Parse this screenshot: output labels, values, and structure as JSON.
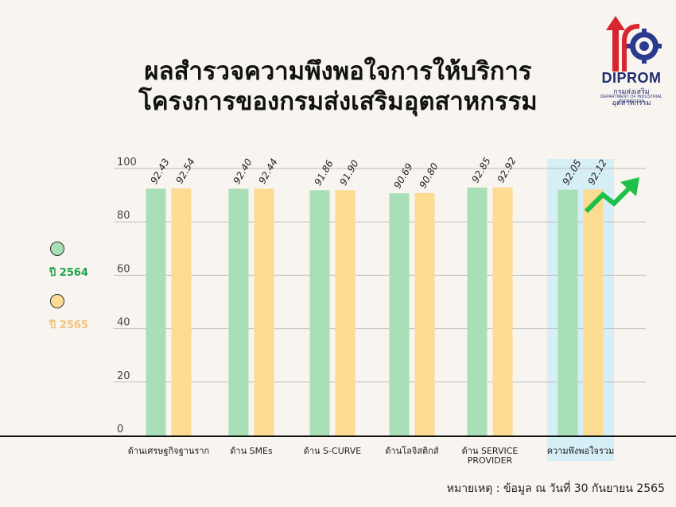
{
  "title_line1": "ผลสำรวจความพึงพอใจการให้บริการ",
  "title_line2": "โครงการของกรมส่งเสริมอุตสาหกรรม",
  "logo": {
    "name": "DIPROM",
    "sub_th": "กรมส่งเสริมอุตสาหกรรม",
    "sub_en": "DEPARTMENT OF INDUSTRIAL PROMOTION"
  },
  "note": "หมายเหตุ : ข้อมูล ณ วันที่ 30 กันยายน 2565",
  "colors": {
    "series_2564": "#a8dfb6",
    "series_2565": "#fcdc92",
    "label_2564": "#1ea34a",
    "label_2565": "#f4c27a",
    "highlight": "#d6eef5",
    "arrow": "#1ec04a"
  },
  "chart_data": {
    "type": "bar",
    "categories": [
      "ด้านเศรษฐกิจฐานราก",
      "ด้าน SMEs",
      "ด้าน S-CURVE",
      "ด้านโลจิสติกส์",
      "ด้าน SERVICE PROVIDER",
      "ความพึงพอใจรวม"
    ],
    "series": [
      {
        "name": "ปี 2564",
        "values": [
          92.43,
          92.4,
          91.86,
          90.69,
          92.85,
          92.05
        ]
      },
      {
        "name": "ปี 2565",
        "values": [
          92.54,
          92.44,
          91.9,
          90.8,
          92.92,
          92.12
        ]
      }
    ],
    "yticks": [
      "0",
      "20",
      "40",
      "60",
      "80",
      "100"
    ],
    "ylim": [
      0,
      100
    ],
    "grid": true,
    "legend": "left",
    "highlighted_category": "ความพึงพอใจรวม"
  }
}
